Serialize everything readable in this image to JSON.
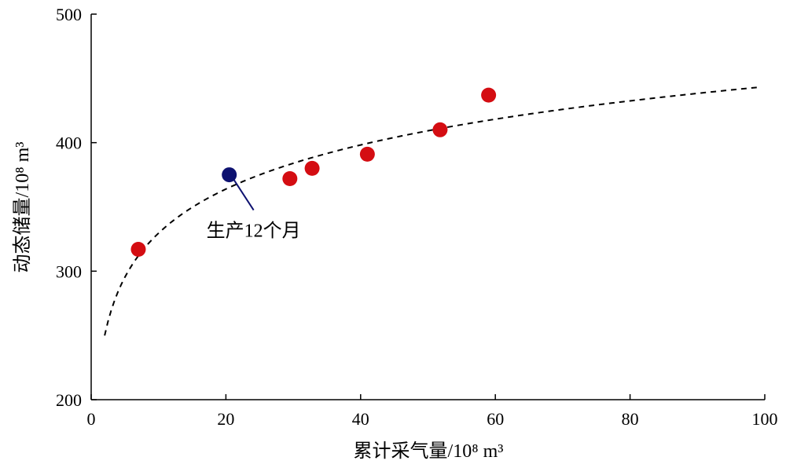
{
  "chart_data": {
    "type": "scatter",
    "xlabel": "累计采气量/10⁸ m³",
    "ylabel": "动态储量/10⁸ m³",
    "xlim": [
      0,
      100
    ],
    "ylim": [
      200,
      500
    ],
    "xticks": [
      "0",
      "20",
      "40",
      "60",
      "80",
      "100"
    ],
    "yticks": [
      "200",
      "300",
      "400",
      "500"
    ],
    "grid": false,
    "series": [
      {
        "color": "#d40d12",
        "points": [
          [
            7,
            317
          ],
          [
            29.5,
            372
          ],
          [
            32.8,
            380
          ],
          [
            41,
            391
          ],
          [
            51.8,
            410
          ],
          [
            59,
            437
          ]
        ]
      },
      {
        "color": "#0d1170",
        "points": [
          [
            20.5,
            375
          ]
        ]
      }
    ],
    "trend": {
      "style": "dashed",
      "color": "#000000",
      "model": "logarithmic",
      "a": 215.6,
      "b": 49.5,
      "x_range": [
        2,
        99
      ]
    },
    "annotations": [
      {
        "text": "生产12个月",
        "x": 20.5,
        "y": 375
      }
    ]
  }
}
